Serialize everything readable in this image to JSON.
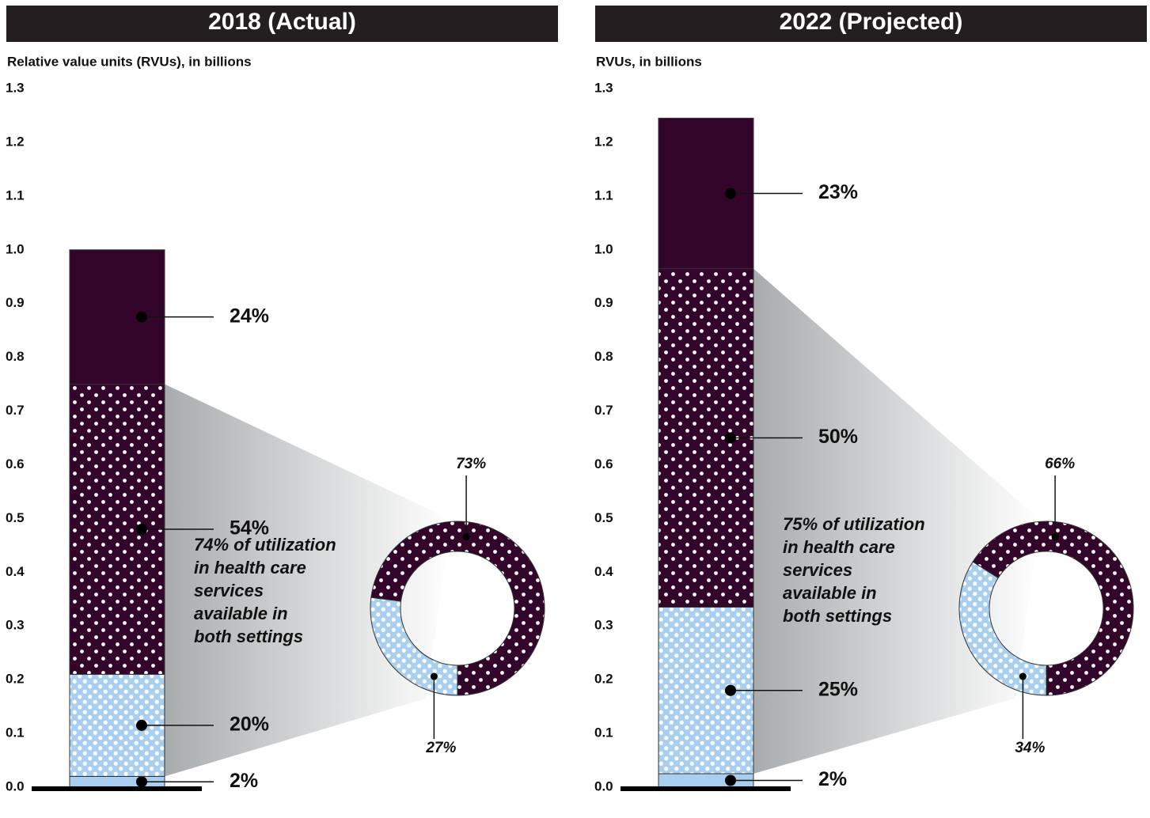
{
  "chart_data": [
    {
      "type": "stacked_bar",
      "title": "2018 (Actual)",
      "y_label": "Relative value units (RVUs), in billions",
      "ylim": [
        0,
        1.3
      ],
      "yticks": [
        {
          "value": 0,
          "label": "0.0"
        },
        0.1,
        0.2,
        0.3,
        0.4,
        0.5,
        0.6,
        0.7,
        0.8,
        0.9,
        {
          "value": 1,
          "label": "1.0"
        },
        1.1,
        1.2,
        1.3
      ],
      "segments": [
        {
          "value": 0.02,
          "share_label": "2%",
          "color": "#a8cff0",
          "pattern": "solid"
        },
        {
          "value": 0.19,
          "share_label": "20%",
          "color": "#a8cff0",
          "pattern": "dots"
        },
        {
          "value": 0.54,
          "share_label": "54%",
          "color": "#33052a",
          "pattern": "dots"
        },
        {
          "value": 0.25,
          "share_label": "24%",
          "color": "#33052a",
          "pattern": "solid"
        }
      ],
      "annotation": [
        "74% of utilization",
        "in health care",
        "services",
        "available in",
        "both settings"
      ],
      "donut": {
        "values": [
          73,
          27
        ],
        "value_labels": [
          "73%",
          "27%"
        ],
        "colors": [
          "#33052a",
          "#a8cff0"
        ]
      }
    },
    {
      "type": "stacked_bar",
      "title": "2022 (Projected)",
      "y_label": "RVUs, in billions",
      "ylim": [
        0,
        1.3
      ],
      "yticks": [
        {
          "value": 0,
          "label": "0.0"
        },
        0.1,
        0.2,
        0.3,
        0.4,
        0.5,
        0.6,
        0.7,
        0.8,
        0.9,
        {
          "value": 1,
          "label": "1.0"
        },
        1.1,
        1.2,
        1.3
      ],
      "segments": [
        {
          "value": 0.025,
          "share_label": "2%",
          "color": "#a8cff0",
          "pattern": "solid"
        },
        {
          "value": 0.31,
          "share_label": "25%",
          "color": "#a8cff0",
          "pattern": "dots"
        },
        {
          "value": 0.63,
          "share_label": "50%",
          "color": "#33052a",
          "pattern": "dots"
        },
        {
          "value": 0.28,
          "share_label": "23%",
          "color": "#33052a",
          "pattern": "solid"
        }
      ],
      "annotation": [
        "75% of utilization",
        "in health care",
        "services",
        "available in",
        "both settings"
      ],
      "donut": {
        "values": [
          66,
          34
        ],
        "value_labels": [
          "66%",
          "34%"
        ],
        "colors": [
          "#33052a",
          "#a8cff0"
        ]
      }
    }
  ]
}
